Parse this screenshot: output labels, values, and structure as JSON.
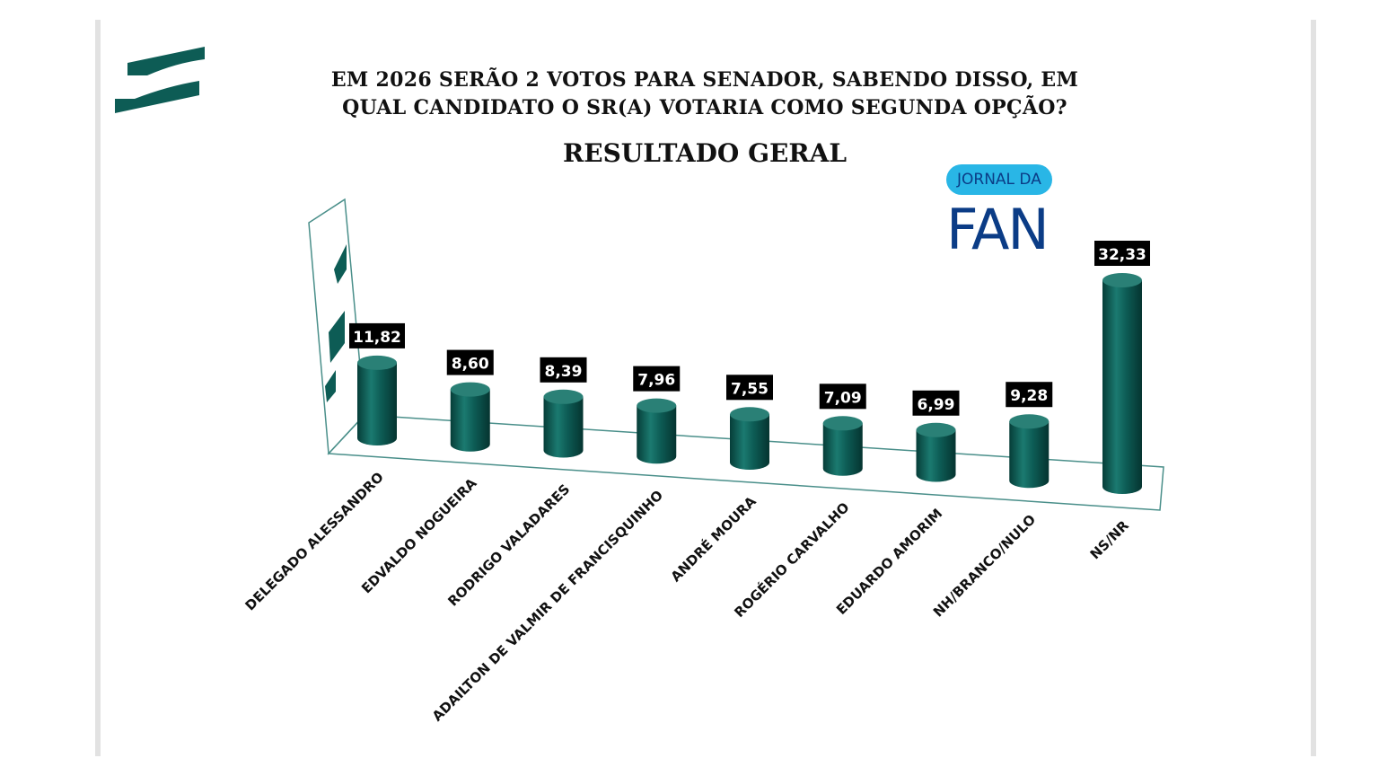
{
  "title_line1": "EM 2026 SERÃO 2 VOTOS PARA SENADOR, SABENDO DISSO, EM",
  "title_line2": "QUAL CANDIDATO O SR(A) VOTARIA COMO SEGUNDA OPÇÃO?",
  "subtitle": "RESULTADO GERAL",
  "watermark": {
    "top": "JORNAL DA",
    "bottom": "FAN"
  },
  "colors": {
    "bar": "#0d5c55",
    "bar_dark": "#063d38",
    "bar_light": "#2a8076",
    "frame": "#4a8f8a",
    "label_bg": "#000000",
    "label_text": "#ffffff",
    "fan_blue": "#0b3c86",
    "fan_pill": "#29b6e6"
  },
  "icons": [
    "institute-logo",
    "jornal-da-fan-logo"
  ],
  "chart_data": {
    "type": "bar",
    "style": "3d-cylinder",
    "categories": [
      "DELEGADO ALESSANDRO",
      "EDVALDO NOGUEIRA",
      "RODRIGO VALADARES",
      "ADAILTON DE VALMIR DE FRANCISQUINHO",
      "ANDRÉ MOURA",
      "ROGÉRIO CARVALHO",
      "EDUARDO AMORIM",
      "NH/BRANCO/NULO",
      "NS/NR"
    ],
    "values": [
      11.82,
      8.6,
      8.39,
      7.96,
      7.55,
      7.09,
      6.99,
      9.28,
      32.33
    ],
    "value_labels": [
      "11,82",
      "8,60",
      "8,39",
      "7,96",
      "7,55",
      "7,09",
      "6,99",
      "9,28",
      "32,33"
    ],
    "grid": false,
    "legend": "none"
  }
}
